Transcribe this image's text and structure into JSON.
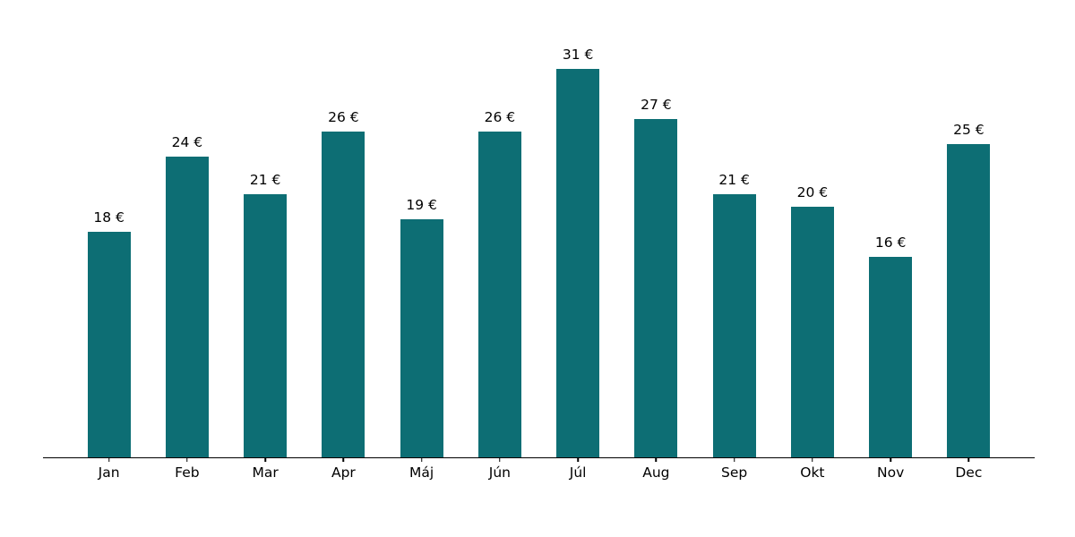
{
  "chart_data": {
    "type": "bar",
    "categories": [
      "Jan",
      "Feb",
      "Mar",
      "Apr",
      "Máj",
      "Jún",
      "Júl",
      "Aug",
      "Sep",
      "Okt",
      "Nov",
      "Dec"
    ],
    "values": [
      18,
      24,
      21,
      26,
      19,
      26,
      31,
      27,
      21,
      20,
      16,
      25
    ],
    "value_labels": [
      "18 €",
      "24 €",
      "21 €",
      "26 €",
      "19 €",
      "26 €",
      "31 €",
      "27 €",
      "21 €",
      "20 €",
      "16 €",
      "25 €"
    ],
    "title": "",
    "xlabel": "",
    "ylabel": "",
    "ylim": [
      0,
      31
    ],
    "unit": "€",
    "grid": false,
    "legend": false,
    "bar_color": "#0d6e74",
    "axis_color": "#000000",
    "label_color": "#000000",
    "background_color": "#ffffff"
  }
}
